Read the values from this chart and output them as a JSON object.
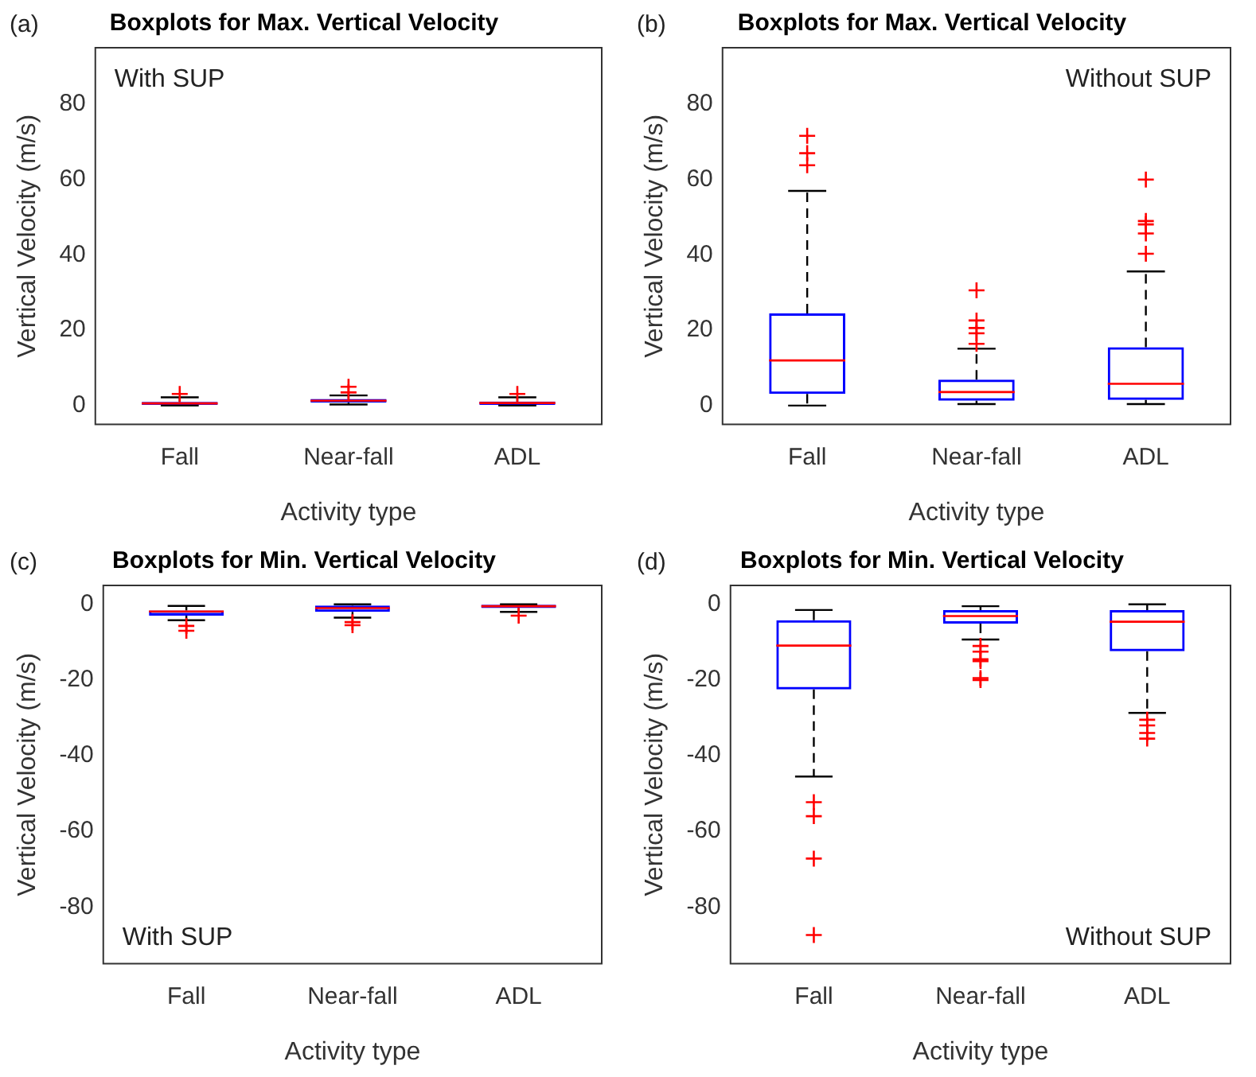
{
  "chart_data": [
    {
      "type": "box",
      "title": "Boxplots for Max. Vertical Velocity",
      "xlabel": "Activity type",
      "ylabel": "Vertical Velocity (m/s)",
      "annotations": [
        "(a)",
        "With SUP"
      ],
      "categories": [
        "Fall",
        "Near-fall",
        "ADL"
      ],
      "color": "#0000ff",
      "ylim": [
        -5,
        95
      ],
      "yticks": [
        0,
        20,
        40,
        60,
        80
      ],
      "grid": false,
      "boxes": [
        {
          "low": 0,
          "q1": 0.2,
          "median": 0.6,
          "q3": 1,
          "high": 2.2,
          "outliers": [
            3.1
          ]
        },
        {
          "low": 0.3,
          "q1": 0.8,
          "median": 1.3,
          "q3": 1.8,
          "high": 2.7,
          "outliers": [
            3.5,
            5
          ]
        },
        {
          "low": 0,
          "q1": 0.2,
          "median": 0.7,
          "q3": 1.1,
          "high": 2.2,
          "outliers": [
            3.1
          ]
        }
      ]
    },
    {
      "type": "box",
      "title": "Boxplots for Max. Vertical Velocity",
      "xlabel": "Activity type",
      "ylabel": "Vertical Velocity (m/s)",
      "annotations": [
        "(b)",
        "Without SUP"
      ],
      "categories": [
        "Fall",
        "Near-fall",
        "ADL"
      ],
      "color": "#0000ff",
      "ylim": [
        -5,
        95
      ],
      "yticks": [
        0,
        20,
        40,
        60,
        80
      ],
      "grid": false,
      "boxes": [
        {
          "low": 0,
          "q1": 3.1,
          "median": 12,
          "q3": 24.5,
          "high": 57,
          "outliers": [
            63.8,
            67,
            71.6
          ]
        },
        {
          "low": 0.4,
          "q1": 1.3,
          "median": 3.6,
          "q3": 6.9,
          "high": 15.1,
          "outliers": [
            16.4,
            19.2,
            20.6,
            22.6,
            30.6
          ]
        },
        {
          "low": 0.4,
          "q1": 1.5,
          "median": 5.8,
          "q3": 15.5,
          "high": 35.6,
          "outliers": [
            40.3,
            45.7,
            48.1,
            49,
            60
          ]
        }
      ]
    },
    {
      "type": "box",
      "title": "Boxplots for Min. Vertical Velocity",
      "xlabel": "Activity type",
      "ylabel": "Vertical Velocity (m/s)",
      "annotations": [
        "(c)",
        "With SUP"
      ],
      "categories": [
        "Fall",
        "Near-fall",
        "ADL"
      ],
      "color": "#0000ff",
      "ylim": [
        -95,
        5
      ],
      "yticks": [
        -80,
        -60,
        -40,
        -20,
        0
      ],
      "grid": false,
      "boxes": [
        {
          "low": -4.2,
          "q1": -3,
          "median": -1.9,
          "q3": -1.6,
          "high": -0.4,
          "outliers": [
            -7,
            -5.7
          ]
        },
        {
          "low": -3.5,
          "q1": -2,
          "median": -1,
          "q3": -0.3,
          "high": 0,
          "outliers": [
            -5.5,
            -4.7
          ]
        },
        {
          "low": -2,
          "q1": -1,
          "median": -0.5,
          "q3": -0.1,
          "high": 0,
          "outliers": [
            -3
          ]
        }
      ]
    },
    {
      "type": "box",
      "title": "Boxplots for Min. Vertical Velocity",
      "xlabel": "Activity type",
      "ylabel": "Vertical Velocity (m/s)",
      "annotations": [
        "(d)",
        "Without SUP"
      ],
      "categories": [
        "Fall",
        "Near-fall",
        "ADL"
      ],
      "color": "#0000ff",
      "ylim": [
        -95,
        5
      ],
      "yticks": [
        -80,
        -60,
        -40,
        -20,
        0
      ],
      "grid": false,
      "boxes": [
        {
          "low": -45.5,
          "q1": -22.5,
          "median": -10.9,
          "q3": -4.2,
          "high": -1.5,
          "outliers": [
            -87.4,
            -67.2,
            -56,
            -52.3
          ]
        },
        {
          "low": -9.3,
          "q1": -5.1,
          "median": -3.1,
          "q3": -1.5,
          "high": -0.5,
          "outliers": [
            -20,
            -19.5,
            -15,
            -14.5,
            -12.5,
            -11
          ]
        },
        {
          "low": -28.7,
          "q1": -12.4,
          "median": -4.6,
          "q3": -1.5,
          "high": 0,
          "outliers": [
            -35.5,
            -34,
            -32,
            -30.5
          ]
        }
      ]
    }
  ]
}
